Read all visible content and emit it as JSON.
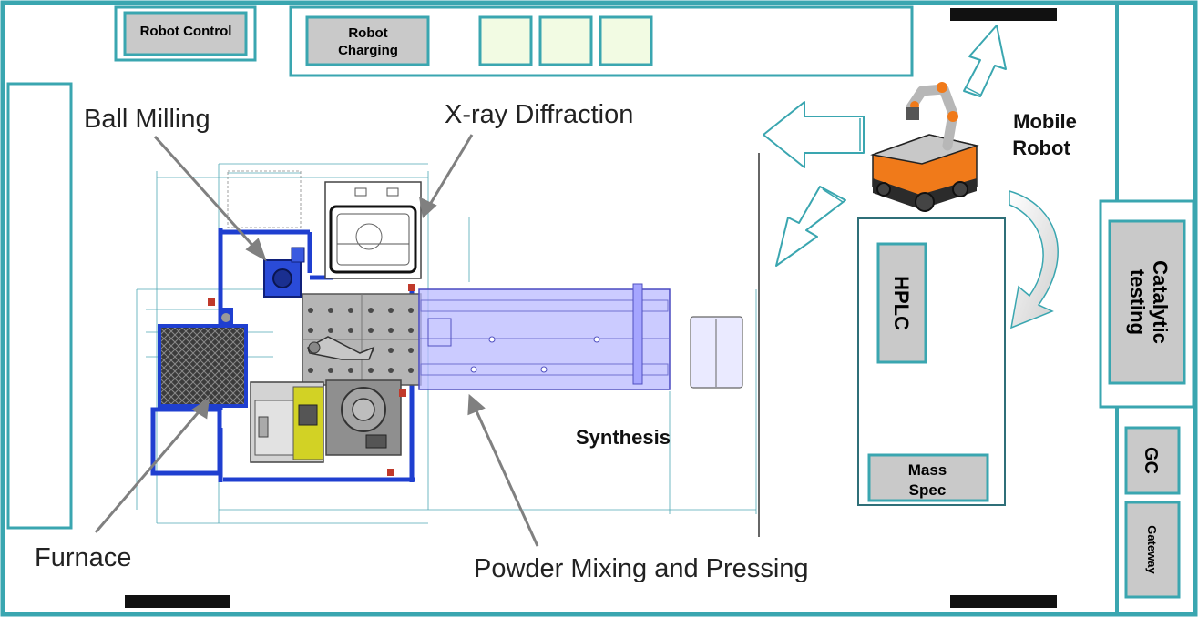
{
  "labels": {
    "robot_control": "Robot Control",
    "robot_charging_line1": "Robot",
    "robot_charging_line2": "Charging",
    "ball_milling": "Ball Milling",
    "xray_diffraction": "X-ray Diffraction",
    "mobile_robot_line1": "Mobile",
    "mobile_robot_line2": "Robot",
    "synthesis": "Synthesis",
    "furnace": "Furnace",
    "powder_mixing": "Powder Mixing and Pressing",
    "hplc": "HPLC",
    "mass_spec_line1": "Mass",
    "mass_spec_line2": "Spec",
    "catalytic_line1": "Catalytic",
    "catalytic_line2": "testing",
    "gc": "GC",
    "gateway": "Gateway"
  },
  "colors": {
    "wall": "#3aa6b0",
    "station_fill": "#c9c9c9",
    "bench_fill": "#f2fbe3",
    "door": "#111111",
    "blue_frame": "#1f3fd0",
    "xy_stage": "#b9b9ff",
    "robot_orange": "#f07a1a",
    "furnace_yellow": "#c8c81e"
  },
  "icons": [
    "arrow-icon",
    "mobile-robot-icon",
    "curved-arrow-icon"
  ]
}
